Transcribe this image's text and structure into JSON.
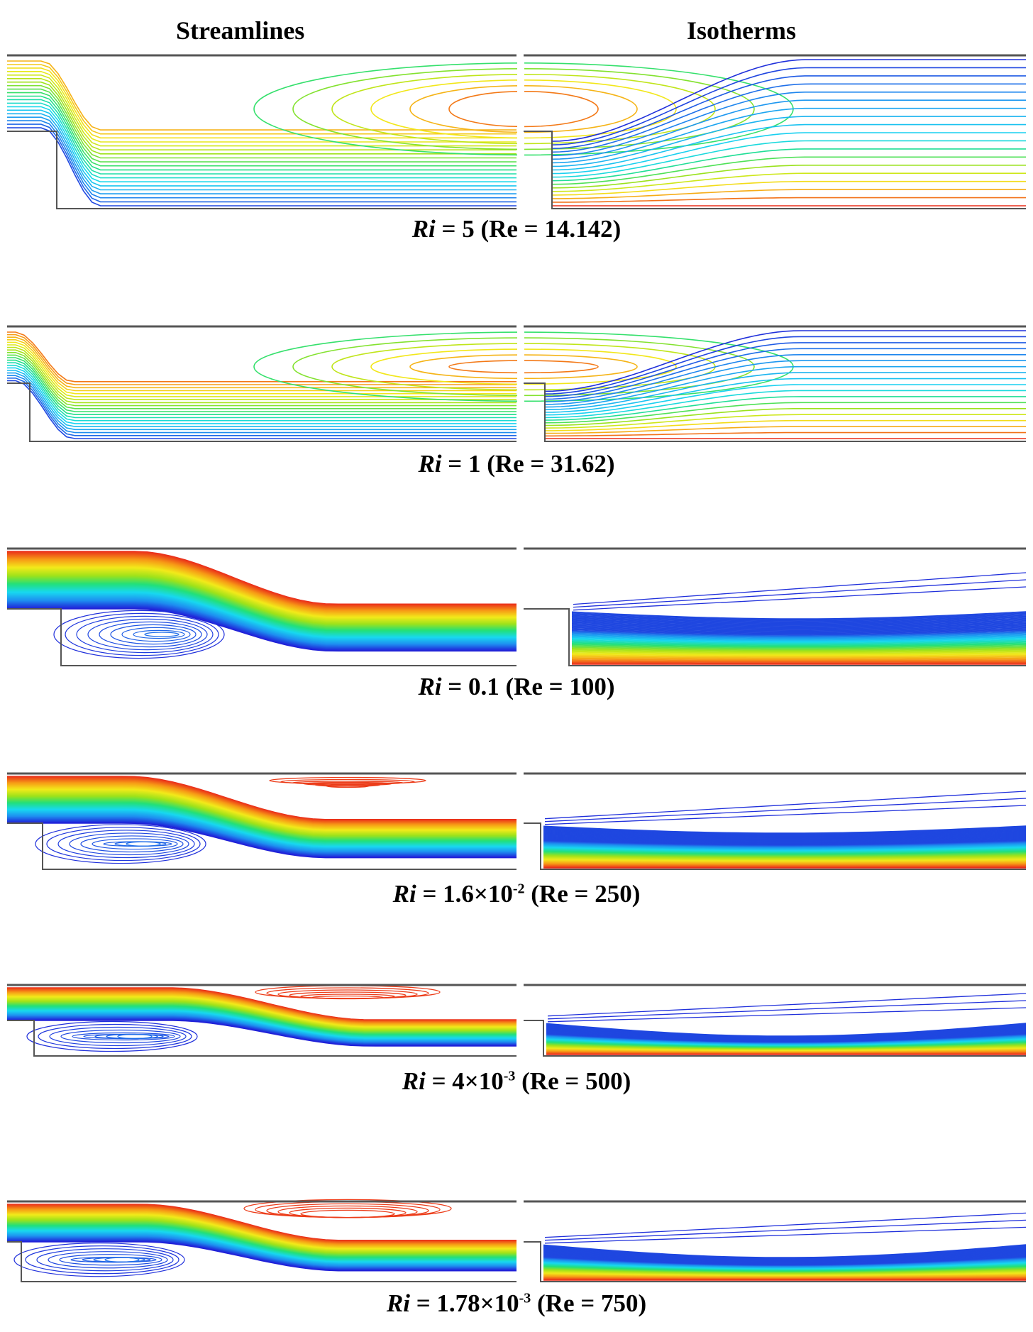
{
  "headers": {
    "left": "Streamlines",
    "right": "Isotherms"
  },
  "colormap": [
    "#2020d8",
    "#1e8ff0",
    "#18d8f0",
    "#22e07a",
    "#9ee21a",
    "#f2ea1a",
    "#f79a16",
    "#ea2d1a"
  ],
  "wall_color": "#555555",
  "panels": [
    {
      "regime": "buoyancy",
      "caption": {
        "ri_label": "Ri",
        "pre": " = 5 ",
        "exp": "",
        "post": "(Re = 14.142)"
      },
      "stream_lines": 20,
      "iso_lines": 19
    },
    {
      "regime": "buoyancy",
      "caption": {
        "ri_label": "Ri",
        "pre": " = 1 ",
        "exp": "",
        "post": "(Re = 31.62)"
      },
      "stream_lines": 20,
      "iso_lines": 19
    },
    {
      "regime": "forced",
      "caption": {
        "ri_label": "Ri",
        "pre": " = 0.1 ",
        "exp": "",
        "post": "(Re = 100)"
      },
      "top_vortex": 0,
      "bottom_vortex": 1
    },
    {
      "regime": "forced",
      "caption": {
        "ri_label": "Ri",
        "pre": " = 1.6×10",
        "exp": "-2",
        "post": " (Re = 250)"
      },
      "top_vortex": 0.5,
      "bottom_vortex": 1
    },
    {
      "regime": "forced",
      "caption": {
        "ri_label": "Ri",
        "pre": " = 4×10",
        "exp": "-3",
        "post": " (Re = 500)"
      },
      "top_vortex": 1,
      "bottom_vortex": 1
    },
    {
      "regime": "forced",
      "caption": {
        "ri_label": "Ri",
        "pre": " = 1.78×10",
        "exp": "-3",
        "post": " (Re = 750)"
      },
      "top_vortex": 1.4,
      "bottom_vortex": 1
    }
  ]
}
